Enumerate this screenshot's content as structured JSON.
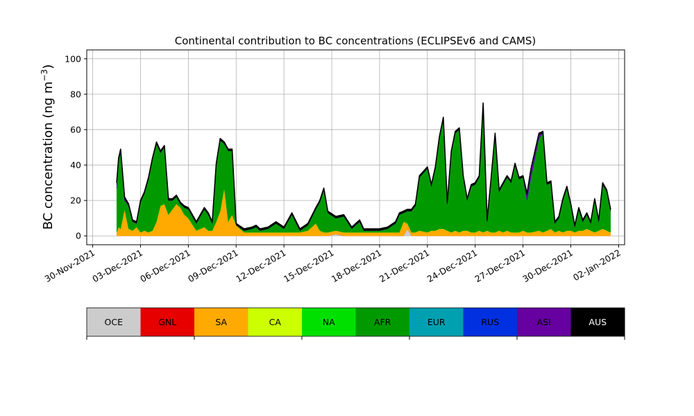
{
  "chart_data": {
    "type": "area",
    "stacked": true,
    "title": "Continental contribution to BC concentrations (ECLIPSEv6 and CAMS)",
    "ylabel_main": "BC concentration (ng m",
    "ylabel_exp": "−3",
    "ylabel_close": ")",
    "ylim": [
      -5,
      105
    ],
    "yticks": [
      0,
      20,
      40,
      60,
      80,
      100
    ],
    "xlim": [
      "2021-11-29T15:00",
      "2022-01-02T09:00"
    ],
    "xticks": [
      {
        "date": "2021-11-30",
        "label": "30-Nov-2021"
      },
      {
        "date": "2021-12-03",
        "label": "03-Dec-2021"
      },
      {
        "date": "2021-12-06",
        "label": "06-Dec-2021"
      },
      {
        "date": "2021-12-09",
        "label": "09-Dec-2021"
      },
      {
        "date": "2021-12-12",
        "label": "12-Dec-2021"
      },
      {
        "date": "2021-12-15",
        "label": "15-Dec-2021"
      },
      {
        "date": "2021-12-18",
        "label": "18-Dec-2021"
      },
      {
        "date": "2021-12-21",
        "label": "21-Dec-2021"
      },
      {
        "date": "2021-12-24",
        "label": "24-Dec-2021"
      },
      {
        "date": "2021-12-27",
        "label": "27-Dec-2021"
      },
      {
        "date": "2021-12-30",
        "label": "30-Dec-2021"
      },
      {
        "date": "2022-01-02",
        "label": "02-Jan-2022"
      }
    ],
    "grid": true,
    "legend_position": "bottom",
    "dates": [
      "2021-12-01T12:00",
      "2021-12-01T15:00",
      "2021-12-01T18:00",
      "2021-12-02T00:00",
      "2021-12-02T06:00",
      "2021-12-02T12:00",
      "2021-12-02T18:00",
      "2021-12-03T00:00",
      "2021-12-03T06:00",
      "2021-12-03T12:00",
      "2021-12-03T18:00",
      "2021-12-04T00:00",
      "2021-12-04T06:00",
      "2021-12-04T12:00",
      "2021-12-04T18:00",
      "2021-12-05T00:00",
      "2021-12-05T06:00",
      "2021-12-05T12:00",
      "2021-12-05T18:00",
      "2021-12-06T00:00",
      "2021-12-06T12:00",
      "2021-12-07T00:00",
      "2021-12-07T06:00",
      "2021-12-07T12:00",
      "2021-12-07T18:00",
      "2021-12-08T00:00",
      "2021-12-08T06:00",
      "2021-12-08T12:00",
      "2021-12-08T18:00",
      "2021-12-09T00:00",
      "2021-12-09T12:00",
      "2021-12-10T00:00",
      "2021-12-10T06:00",
      "2021-12-10T12:00",
      "2021-12-11T00:00",
      "2021-12-11T12:00",
      "2021-12-12T00:00",
      "2021-12-12T12:00",
      "2021-12-13T00:00",
      "2021-12-13T12:00",
      "2021-12-14T00:00",
      "2021-12-14T06:00",
      "2021-12-14T12:00",
      "2021-12-14T18:00",
      "2021-12-15T06:00",
      "2021-12-15T18:00",
      "2021-12-16T06:00",
      "2021-12-16T18:00",
      "2021-12-17T00:00",
      "2021-12-17T12:00",
      "2021-12-18T00:00",
      "2021-12-18T12:00",
      "2021-12-19T00:00",
      "2021-12-19T06:00",
      "2021-12-19T12:00",
      "2021-12-19T18:00",
      "2021-12-20T00:00",
      "2021-12-20T06:00",
      "2021-12-20T12:00",
      "2021-12-21T00:00",
      "2021-12-21T06:00",
      "2021-12-21T12:00",
      "2021-12-21T18:00",
      "2021-12-22T00:00",
      "2021-12-22T06:00",
      "2021-12-22T12:00",
      "2021-12-22T18:00",
      "2021-12-23T00:00",
      "2021-12-23T06:00",
      "2021-12-23T12:00",
      "2021-12-23T18:00",
      "2021-12-24T00:00",
      "2021-12-24T06:00",
      "2021-12-24T12:00",
      "2021-12-24T18:00",
      "2021-12-25T00:00",
      "2021-12-25T06:00",
      "2021-12-25T12:00",
      "2021-12-25T18:00",
      "2021-12-26T00:00",
      "2021-12-26T06:00",
      "2021-12-26T12:00",
      "2021-12-26T18:00",
      "2021-12-27T00:00",
      "2021-12-27T06:00",
      "2021-12-27T12:00",
      "2021-12-28T00:00",
      "2021-12-28T06:00",
      "2021-12-28T12:00",
      "2021-12-28T18:00",
      "2021-12-29T00:00",
      "2021-12-29T06:00",
      "2021-12-29T12:00",
      "2021-12-29T18:00",
      "2021-12-30T00:00",
      "2021-12-30T06:00",
      "2021-12-30T12:00",
      "2021-12-30T18:00",
      "2021-12-31T00:00",
      "2021-12-31T06:00",
      "2021-12-31T12:00",
      "2021-12-31T18:00",
      "2022-01-01T00:00",
      "2022-01-01T06:00",
      "2022-01-01T12:00"
    ],
    "series": [
      {
        "name": "OCE",
        "color": "#cccccc",
        "values": [
          0,
          0,
          0,
          0,
          0,
          0,
          0,
          0,
          0,
          0,
          0,
          0,
          0,
          0,
          0,
          0,
          0,
          0,
          0,
          0,
          0,
          0,
          0,
          0,
          0,
          0,
          0,
          0,
          0,
          0,
          0,
          0,
          0,
          0,
          0,
          0,
          0,
          0,
          0,
          0,
          0,
          0,
          0,
          0,
          1,
          0,
          0,
          0,
          0,
          0,
          0,
          0,
          0,
          0,
          0,
          4,
          0,
          0,
          0,
          0,
          0,
          0,
          0,
          0,
          0,
          0,
          0,
          0,
          0,
          0,
          0,
          0,
          0,
          0,
          0,
          0,
          0,
          0,
          0,
          0,
          0,
          0,
          0,
          0,
          0,
          0,
          0,
          0,
          0,
          0,
          0,
          0,
          0,
          0,
          0,
          0,
          0,
          0,
          0,
          0,
          0,
          0,
          0,
          0,
          0
        ]
      },
      {
        "name": "GNL",
        "values": [
          0,
          0,
          0,
          0,
          0,
          0,
          0,
          0,
          0,
          0,
          0,
          0,
          0,
          0,
          0,
          0,
          0,
          0,
          0,
          0,
          0,
          0,
          0,
          0,
          0,
          0,
          0,
          0,
          0,
          0,
          0,
          0,
          0,
          0,
          0,
          0,
          0,
          0,
          0,
          0,
          0,
          0,
          0,
          0,
          0,
          0,
          0,
          0,
          0,
          0,
          0,
          0,
          0,
          0,
          0,
          0,
          0,
          0,
          0,
          0,
          0,
          0,
          0,
          0,
          0,
          0,
          0,
          0,
          0,
          0,
          0,
          0,
          0,
          0,
          0,
          0,
          0,
          0,
          0,
          0,
          0,
          0,
          0,
          0,
          0,
          0,
          0,
          0,
          0,
          0,
          0,
          0,
          0,
          0,
          0,
          0,
          0,
          0,
          0,
          0,
          0,
          0,
          0,
          0,
          0
        ],
        "color": "#e60000"
      },
      {
        "name": "SA",
        "color": "#ffaa00",
        "values": [
          2,
          5,
          4,
          15,
          4,
          3,
          5,
          2,
          3,
          2,
          3,
          8,
          17,
          18,
          12,
          15,
          18,
          16,
          12,
          10,
          3,
          5,
          3,
          3,
          8,
          14,
          27,
          8,
          12,
          6,
          2,
          2,
          2,
          2,
          2,
          2,
          2,
          2,
          2,
          3,
          7,
          3,
          2,
          2,
          2,
          2,
          2,
          2,
          2,
          2,
          2,
          2,
          2,
          2,
          8,
          3,
          2,
          2,
          3,
          2,
          3,
          3,
          4,
          4,
          3,
          2,
          3,
          2,
          3,
          3,
          2,
          2,
          3,
          2,
          3,
          2,
          2,
          3,
          2,
          3,
          2,
          2,
          2,
          3,
          2,
          2,
          3,
          2,
          3,
          4,
          2,
          3,
          2,
          3,
          3,
          2,
          3,
          3,
          4,
          3,
          2,
          3,
          4,
          3,
          2
        ]
      },
      {
        "name": "CA",
        "color": "#ccff00",
        "values": [
          0,
          0,
          0,
          0,
          0,
          0,
          0,
          0,
          0,
          0,
          0,
          0,
          0,
          0,
          0,
          0,
          0,
          0,
          0,
          0,
          0,
          0,
          0,
          0,
          0,
          0,
          0,
          0,
          0,
          0,
          0,
          0,
          0,
          0,
          0,
          0,
          0,
          0,
          0,
          0,
          0,
          0,
          0,
          0,
          0,
          0,
          0,
          0,
          0,
          0,
          0,
          0,
          0,
          0,
          0,
          0,
          0,
          0,
          0,
          0,
          0,
          0,
          0,
          0,
          0,
          0,
          0,
          0,
          0,
          0,
          0,
          0,
          0,
          0,
          0,
          0,
          0,
          0,
          0,
          0,
          0,
          0,
          0,
          0,
          0,
          0,
          0,
          0,
          0,
          0,
          0,
          0,
          0,
          0,
          0,
          0,
          0,
          0,
          0,
          0,
          0,
          0,
          0,
          0,
          0
        ]
      },
      {
        "name": "NA",
        "color": "#00e000",
        "values": [
          0,
          0,
          0,
          0,
          0,
          0,
          0,
          0,
          0,
          0,
          0,
          0,
          0,
          0,
          0,
          0,
          0,
          0,
          0,
          0,
          0,
          0,
          0,
          0,
          0,
          0,
          0,
          0,
          0,
          0,
          0,
          0,
          0,
          0,
          0,
          0,
          0,
          0,
          0,
          0,
          0,
          0,
          0,
          0,
          0,
          0,
          0,
          0,
          0,
          0,
          0,
          0,
          0,
          0,
          0,
          0,
          0,
          0,
          0,
          0,
          0,
          0,
          0,
          0,
          0,
          0,
          0,
          0,
          0,
          0,
          0,
          0,
          0,
          0,
          0,
          0,
          0,
          0,
          0,
          0,
          0,
          0,
          0,
          0,
          0,
          0,
          0,
          0,
          0,
          0,
          0,
          0,
          0,
          0,
          0,
          0,
          0,
          0,
          0,
          0,
          0,
          0,
          0,
          0,
          0
        ]
      },
      {
        "name": "AFR",
        "color": "#009a00",
        "values": [
          25,
          38,
          43,
          5,
          13,
          5,
          2,
          17,
          21,
          30,
          40,
          44,
          30,
          32,
          8,
          5,
          4,
          2,
          4,
          5,
          4,
          10,
          9,
          4,
          32,
          40,
          25,
          40,
          36,
          0,
          1,
          2,
          3,
          1,
          2,
          5,
          2,
          10,
          1,
          3,
          8,
          16,
          24,
          11,
          7,
          9,
          2,
          6,
          1,
          1,
          1,
          2,
          5,
          10,
          5,
          7,
          12,
          15,
          30,
          36,
          25,
          35,
          51,
          62,
          15,
          45,
          55,
          58,
          30,
          17,
          26,
          27,
          30,
          72,
          5,
          30,
          55,
          22,
          27,
          30,
          28,
          38,
          30,
          30,
          18,
          31,
          52,
          56,
          26,
          26,
          5,
          7,
          18,
          24,
          14,
          3,
          12,
          5,
          8,
          4,
          18,
          5,
          25,
          22,
          12
        ]
      },
      {
        "name": "EUR",
        "color": "#00a0b0",
        "values": [
          0,
          0,
          0,
          0,
          0,
          0,
          0,
          0,
          0,
          0,
          0,
          0,
          0,
          0,
          0,
          0,
          0,
          0,
          0,
          0,
          0,
          0,
          0,
          0,
          0,
          0,
          0,
          0,
          0,
          0,
          0,
          0,
          0,
          0,
          0,
          0,
          0,
          0,
          0,
          0,
          0,
          0,
          0,
          0,
          0,
          0,
          0,
          0,
          0,
          0,
          0,
          0,
          0,
          0,
          0,
          0,
          0,
          0,
          0,
          0,
          0,
          0,
          0,
          0,
          0,
          0,
          0,
          0,
          0,
          0,
          0,
          0,
          0,
          0,
          0,
          0,
          0,
          0,
          0,
          0,
          0,
          0,
          0,
          0,
          0,
          0,
          0,
          0,
          0,
          0,
          0,
          0,
          0,
          0,
          0,
          0,
          0,
          0,
          0,
          0,
          0,
          0,
          0,
          0,
          0
        ]
      },
      {
        "name": "RUS",
        "color": "#0030e0",
        "values": [
          0,
          0,
          0,
          0,
          0,
          0,
          0,
          0,
          0,
          0,
          0,
          0,
          0,
          0,
          0,
          0,
          0,
          0,
          0,
          0,
          0,
          0,
          0,
          0,
          0,
          0,
          0,
          0,
          0,
          0,
          0,
          0,
          0,
          0,
          0,
          0,
          0,
          0,
          0,
          0,
          0,
          0,
          0,
          0,
          0,
          0,
          0,
          0,
          0,
          0,
          0,
          0,
          0,
          0,
          0,
          0,
          0,
          0,
          0,
          0,
          0,
          0,
          0,
          0,
          0,
          0,
          0,
          0,
          0,
          0,
          0,
          0,
          0,
          0,
          0,
          0,
          0,
          0,
          0,
          0,
          0,
          0,
          0,
          0,
          0,
          0,
          0,
          0,
          0,
          0,
          0,
          0,
          0,
          0,
          0,
          0,
          0,
          0,
          0,
          0,
          0,
          0,
          0,
          0,
          0
        ]
      },
      {
        "name": "ASI",
        "color": "#6600a0",
        "values": [
          2,
          0,
          1,
          1,
          0,
          0,
          0,
          0,
          0,
          0,
          0,
          0,
          0,
          0,
          0,
          0,
          0,
          0,
          0,
          0,
          0,
          0,
          0,
          0,
          0,
          0,
          0,
          0,
          0,
          0,
          0,
          0,
          0,
          0,
          0,
          0,
          0,
          0,
          0,
          0,
          0,
          0,
          0,
          0,
          0,
          0,
          0,
          0,
          0,
          0,
          0,
          0,
          0,
          0,
          0,
          0,
          0,
          0,
          0,
          0,
          0,
          0,
          0,
          0,
          0,
          0,
          0,
          0,
          0,
          0,
          0,
          0,
          0,
          0,
          0,
          0,
          0,
          0,
          0,
          0,
          0,
          0,
          0,
          0,
          3,
          4,
          2,
          0,
          0,
          0,
          0,
          0,
          0,
          0,
          0,
          0,
          0,
          0,
          0,
          0,
          0,
          0,
          0,
          0,
          0
        ]
      },
      {
        "name": "AUS",
        "color": "#000000",
        "values": [
          1,
          1,
          1,
          1,
          1,
          1,
          1,
          1,
          1,
          1,
          1,
          1,
          1,
          1,
          1,
          1,
          1,
          1,
          1,
          1,
          1,
          1,
          1,
          1,
          1,
          1,
          1,
          1,
          1,
          1,
          1,
          1,
          1,
          1,
          1,
          1,
          1,
          1,
          1,
          1,
          1,
          1,
          1,
          1,
          1,
          1,
          1,
          1,
          1,
          1,
          1,
          1,
          1,
          1,
          1,
          1,
          1,
          1,
          1,
          1,
          1,
          1,
          1,
          1,
          1,
          1,
          1,
          1,
          1,
          1,
          1,
          1,
          1,
          1,
          1,
          1,
          1,
          1,
          1,
          1,
          1,
          1,
          1,
          1,
          1,
          1,
          1,
          1,
          1,
          1,
          1,
          1,
          1,
          1,
          1,
          1,
          1,
          1,
          1,
          1,
          1,
          1,
          1,
          1,
          1
        ]
      }
    ]
  }
}
